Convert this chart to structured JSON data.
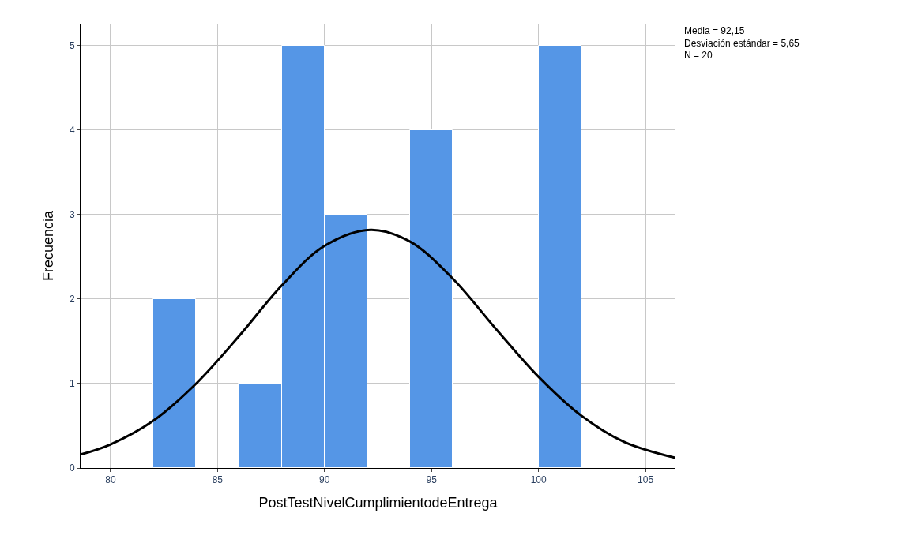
{
  "chart_data": {
    "type": "histogram",
    "xlabel": "PostTestNivelCumplimientodeEntrega",
    "ylabel": "Frecuencia",
    "annotations": [
      "Media = 92,15\nDesviación estándar = 5,65\nN = 20"
    ],
    "bins": [
      82,
      84,
      86,
      88,
      90,
      92,
      94,
      96,
      98,
      100,
      102
    ],
    "series": [
      {
        "color": "#5596e6",
        "values": [
          2,
          0,
          1,
          5,
          3,
          0,
          4,
          0,
          0,
          5
        ]
      },
      {
        "type": "line",
        "color": "#000000",
        "x": [
          78.6,
          80,
          82,
          84,
          86,
          88,
          90,
          92.15,
          94,
          96,
          98,
          100,
          102,
          104,
          106.4
        ],
        "values": [
          0.16,
          0.28,
          0.56,
          1.0,
          1.56,
          2.16,
          2.63,
          2.82,
          2.68,
          2.24,
          1.65,
          1.08,
          0.62,
          0.31,
          0.12
        ]
      }
    ],
    "xlim": [
      78.6,
      106.4
    ],
    "xticks": [
      80,
      85,
      90,
      95,
      100,
      105
    ],
    "ylim": [
      0,
      5.26
    ],
    "yticks": [
      0,
      1,
      2,
      3,
      4,
      5
    ],
    "grid": true,
    "marker": "none",
    "line_style": "solid"
  }
}
